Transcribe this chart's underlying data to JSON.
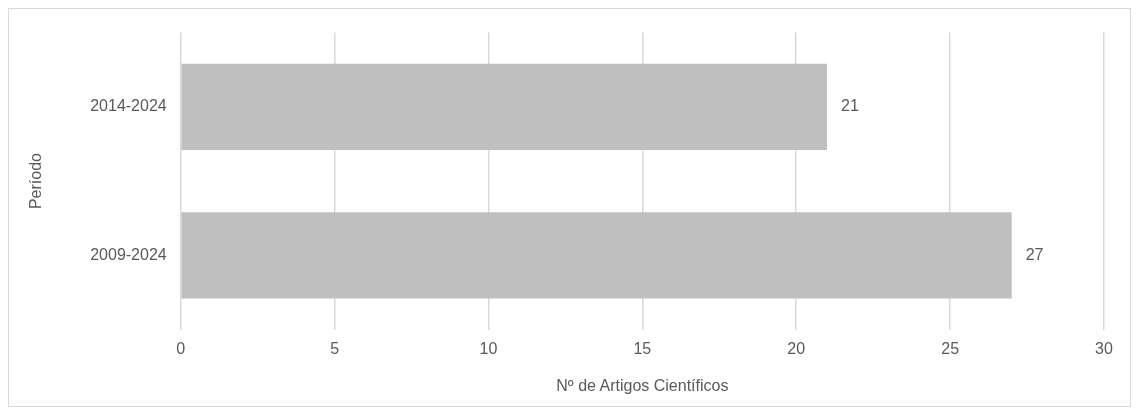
{
  "chart_data": {
    "type": "bar",
    "orientation": "horizontal",
    "xlabel": "Nº de Artigos Científicos",
    "ylabel": "Período",
    "categories": [
      "2014-2024",
      "2009-2024"
    ],
    "values": [
      21,
      27
    ],
    "color": "#bfbfbf",
    "xlim": [
      0,
      30
    ],
    "xticks": [
      0,
      5,
      10,
      15,
      20,
      25,
      30
    ],
    "grid": "x",
    "data_labels": true
  }
}
